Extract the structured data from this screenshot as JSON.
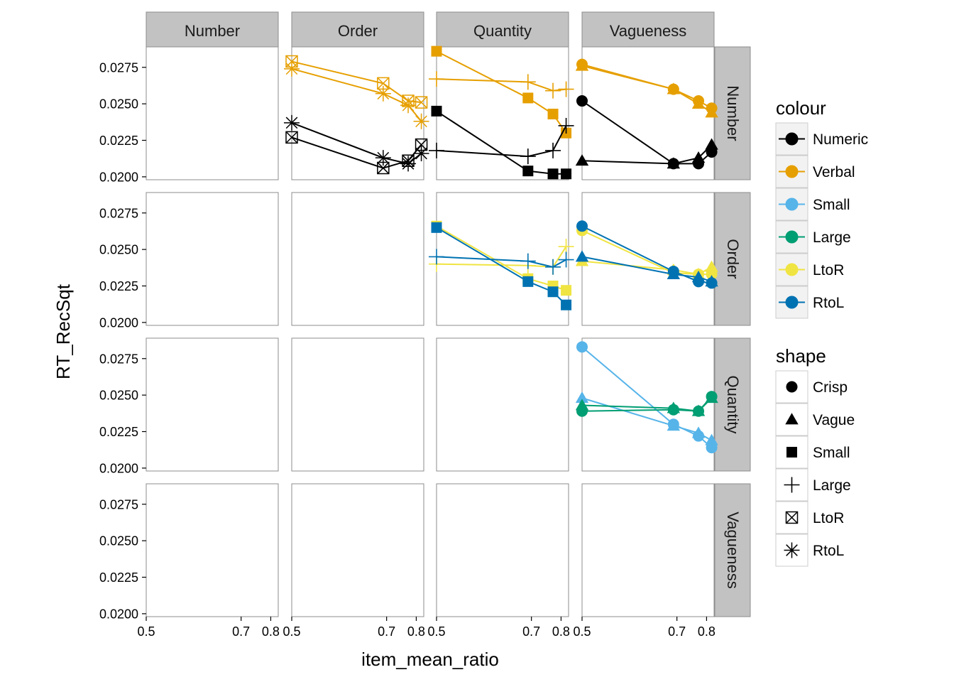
{
  "chart_data": {
    "type": "line",
    "facet_layout": "grid",
    "facet_cols": [
      "Number",
      "Order",
      "Quantity",
      "Vagueness"
    ],
    "facet_rows": [
      "Number",
      "Order",
      "Quantity",
      "Vagueness"
    ],
    "xlabel": "item_mean_ratio",
    "ylabel": "RT_RecSqt",
    "x_scale": "reciprocal",
    "x_ticks_by_col": [
      [
        "0.5",
        "0.7",
        "0.8"
      ],
      [
        "0.5",
        "0.7",
        "0.8"
      ],
      [
        "0.5",
        "0.7",
        "0.8"
      ],
      [
        "0.5",
        "0.7",
        "0.8"
      ]
    ],
    "xlim": [
      0.5,
      0.83
    ],
    "y_ticks": [
      "0.0200",
      "0.0225",
      "0.0250",
      "0.0275"
    ],
    "ylim": [
      0.0198,
      0.0289
    ],
    "grid": false,
    "colors": {
      "Numeric": "#000000",
      "Verbal": "#E69F00",
      "Small": "#56B4E9",
      "Large": "#009E73",
      "LtoR": "#F0E442",
      "RtoL": "#0072B2"
    },
    "legend": {
      "placement": "right",
      "colour": {
        "title": "colour",
        "items": [
          "Numeric",
          "Verbal",
          "Small",
          "Large",
          "LtoR",
          "RtoL"
        ]
      },
      "shape": {
        "title": "shape",
        "items": [
          "Crisp",
          "Vague",
          "Small",
          "Large",
          "LtoR",
          "RtoL"
        ],
        "symbols": [
          "circle",
          "triangle",
          "square",
          "plus",
          "square-x",
          "asterisk"
        ]
      }
    },
    "panels": [
      {
        "row": "Number",
        "col": "Order",
        "series": [
          {
            "colour": "Verbal",
            "shape": "LtoR",
            "x": [
              0.5,
              0.69,
              0.77,
              0.82
            ],
            "y": [
              0.0279,
              0.0264,
              0.0252,
              0.0251
            ]
          },
          {
            "colour": "Verbal",
            "shape": "RtoL",
            "x": [
              0.5,
              0.69,
              0.77,
              0.82
            ],
            "y": [
              0.0274,
              0.0257,
              0.0249,
              0.0238
            ]
          },
          {
            "colour": "Numeric",
            "shape": "LtoR",
            "x": [
              0.5,
              0.69,
              0.77,
              0.82
            ],
            "y": [
              0.0227,
              0.0206,
              0.0211,
              0.0222
            ]
          },
          {
            "colour": "Numeric",
            "shape": "RtoL",
            "x": [
              0.5,
              0.69,
              0.77,
              0.82
            ],
            "y": [
              0.0237,
              0.0213,
              0.0209,
              0.0216
            ]
          }
        ]
      },
      {
        "row": "Number",
        "col": "Quantity",
        "series": [
          {
            "colour": "Verbal",
            "shape": "Small",
            "x": [
              0.5,
              0.69,
              0.77,
              0.82
            ],
            "y": [
              0.0286,
              0.0254,
              0.0243,
              0.023
            ]
          },
          {
            "colour": "Verbal",
            "shape": "Large",
            "x": [
              0.5,
              0.69,
              0.77,
              0.82
            ],
            "y": [
              0.0267,
              0.0265,
              0.0259,
              0.026
            ]
          },
          {
            "colour": "Numeric",
            "shape": "Small",
            "x": [
              0.5,
              0.69,
              0.77,
              0.82
            ],
            "y": [
              0.0245,
              0.0204,
              0.0202,
              0.0202
            ]
          },
          {
            "colour": "Numeric",
            "shape": "Large",
            "x": [
              0.5,
              0.69,
              0.77,
              0.82
            ],
            "y": [
              0.0218,
              0.0214,
              0.0218,
              0.0235
            ]
          }
        ]
      },
      {
        "row": "Number",
        "col": "Vagueness",
        "series": [
          {
            "colour": "Verbal",
            "shape": "Crisp",
            "x": [
              0.5,
              0.69,
              0.77,
              0.82
            ],
            "y": [
              0.0277,
              0.026,
              0.0252,
              0.0247
            ]
          },
          {
            "colour": "Verbal",
            "shape": "Vague",
            "x": [
              0.5,
              0.69,
              0.77,
              0.82
            ],
            "y": [
              0.0276,
              0.026,
              0.025,
              0.0244
            ]
          },
          {
            "colour": "Numeric",
            "shape": "Crisp",
            "x": [
              0.5,
              0.69,
              0.77,
              0.82
            ],
            "y": [
              0.0252,
              0.0209,
              0.0209,
              0.0217
            ]
          },
          {
            "colour": "Numeric",
            "shape": "Vague",
            "x": [
              0.5,
              0.69,
              0.77,
              0.82
            ],
            "y": [
              0.0211,
              0.0209,
              0.0213,
              0.0222
            ]
          }
        ]
      },
      {
        "row": "Order",
        "col": "Quantity",
        "series": [
          {
            "colour": "LtoR",
            "shape": "Small",
            "x": [
              0.5,
              0.69,
              0.77,
              0.82
            ],
            "y": [
              0.0266,
              0.023,
              0.0225,
              0.0222
            ]
          },
          {
            "colour": "LtoR",
            "shape": "Large",
            "x": [
              0.5,
              0.69,
              0.77,
              0.82
            ],
            "y": [
              0.024,
              0.0239,
              0.0238,
              0.0252
            ]
          },
          {
            "colour": "RtoL",
            "shape": "Small",
            "x": [
              0.5,
              0.69,
              0.77,
              0.82
            ],
            "y": [
              0.0265,
              0.0228,
              0.0221,
              0.0212
            ]
          },
          {
            "colour": "RtoL",
            "shape": "Large",
            "x": [
              0.5,
              0.69,
              0.77,
              0.82
            ],
            "y": [
              0.0245,
              0.0242,
              0.0238,
              0.0243
            ]
          }
        ]
      },
      {
        "row": "Order",
        "col": "Vagueness",
        "series": [
          {
            "colour": "LtoR",
            "shape": "Crisp",
            "x": [
              0.5,
              0.69,
              0.77,
              0.82
            ],
            "y": [
              0.0263,
              0.0234,
              0.0233,
              0.0233
            ]
          },
          {
            "colour": "LtoR",
            "shape": "Vague",
            "x": [
              0.5,
              0.69,
              0.77,
              0.82
            ],
            "y": [
              0.0242,
              0.0236,
              0.0233,
              0.0238
            ]
          },
          {
            "colour": "RtoL",
            "shape": "Crisp",
            "x": [
              0.5,
              0.69,
              0.77,
              0.82
            ],
            "y": [
              0.0266,
              0.0235,
              0.0228,
              0.0227
            ]
          },
          {
            "colour": "RtoL",
            "shape": "Vague",
            "x": [
              0.5,
              0.69,
              0.77,
              0.82
            ],
            "y": [
              0.0245,
              0.0233,
              0.0231,
              0.0228
            ]
          }
        ]
      },
      {
        "row": "Quantity",
        "col": "Vagueness",
        "series": [
          {
            "colour": "Small",
            "shape": "Crisp",
            "x": [
              0.5,
              0.69,
              0.77,
              0.82
            ],
            "y": [
              0.0283,
              0.023,
              0.0222,
              0.0214
            ]
          },
          {
            "colour": "Small",
            "shape": "Vague",
            "x": [
              0.5,
              0.69,
              0.77,
              0.82
            ],
            "y": [
              0.0248,
              0.0229,
              0.0224,
              0.0219
            ]
          },
          {
            "colour": "Large",
            "shape": "Crisp",
            "x": [
              0.5,
              0.69,
              0.77,
              0.82
            ],
            "y": [
              0.0239,
              0.024,
              0.0239,
              0.0249
            ]
          },
          {
            "colour": "Large",
            "shape": "Vague",
            "x": [
              0.5,
              0.69,
              0.77,
              0.82
            ],
            "y": [
              0.0243,
              0.0241,
              0.0239,
              0.0248
            ]
          }
        ]
      }
    ]
  }
}
